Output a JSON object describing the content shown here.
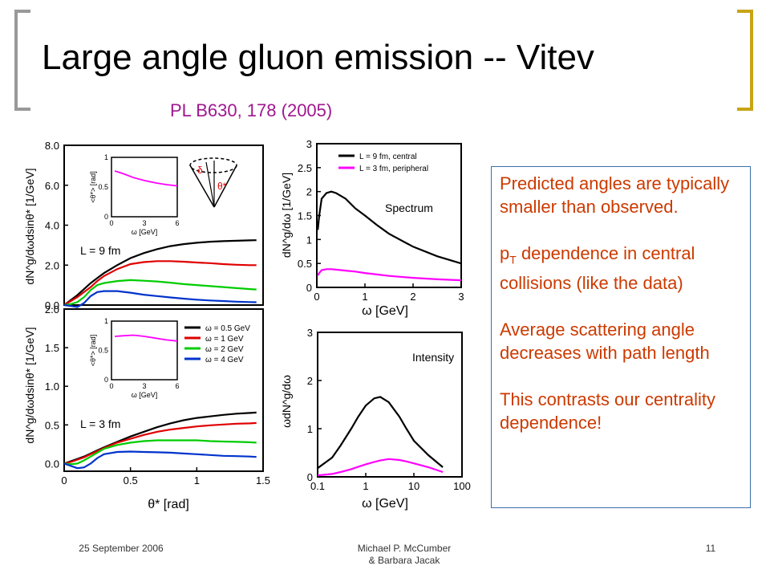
{
  "slide": {
    "title": "Large angle gluon emission -- Vitev",
    "subtitle": "PL B630, 178 (2005)",
    "notes": [
      "Predicted angles are typically smaller than observed.",
      "dependence in central collisions (like the data)",
      "Average scattering angle decreases with path length",
      "This contrasts our centrality dependence!"
    ],
    "note_pt_symbol": "p",
    "note_pt_sub": "T",
    "footer": {
      "date": "25 September 2006",
      "author_line1": "Michael P. McCumber",
      "author_line2": "& Barbara Jacak",
      "page": "11"
    },
    "colors": {
      "title": "#000000",
      "subtitle": "#a0178f",
      "notes": "#cc3a00",
      "box_border": "#3a6fa8"
    }
  },
  "chart_data": [
    {
      "type": "line",
      "id": "top-left",
      "ylabel": "dN^g/dωdsinθ* [1/GeV]",
      "xlim": [
        0,
        1.5
      ],
      "ylim": [
        0,
        8
      ],
      "xticks": [
        "0",
        "0.5",
        "1",
        "1.5"
      ],
      "yticks": [
        "0.0",
        "2.0",
        "4.0",
        "6.0",
        "8.0"
      ],
      "annotation": "L = 9 fm",
      "x": [
        0,
        0.05,
        0.1,
        0.15,
        0.2,
        0.25,
        0.3,
        0.4,
        0.5,
        0.6,
        0.7,
        0.8,
        0.9,
        1.0,
        1.1,
        1.2,
        1.3,
        1.4,
        1.45
      ],
      "series": [
        {
          "label": "ω = 0.5 GeV",
          "color": "#000000",
          "values": [
            0,
            0.25,
            0.5,
            0.8,
            1.1,
            1.35,
            1.6,
            2.0,
            2.35,
            2.6,
            2.8,
            2.95,
            3.05,
            3.12,
            3.17,
            3.2,
            3.22,
            3.24,
            3.25
          ]
        },
        {
          "label": "ω = 1 GeV",
          "color": "#e00000",
          "values": [
            0,
            0.2,
            0.4,
            0.65,
            0.9,
            1.2,
            1.45,
            1.8,
            2.05,
            2.15,
            2.2,
            2.2,
            2.17,
            2.13,
            2.1,
            2.05,
            2.02,
            2.0,
            2.0
          ]
        },
        {
          "label": "ω = 2 GeV",
          "color": "#00cc00",
          "values": [
            0,
            0.05,
            0.15,
            0.4,
            0.75,
            1.0,
            1.1,
            1.2,
            1.25,
            1.22,
            1.18,
            1.12,
            1.05,
            1.0,
            0.95,
            0.9,
            0.85,
            0.8,
            0.78
          ]
        },
        {
          "label": "ω = 4 GeV",
          "color": "#0033cc",
          "values": [
            0,
            -0.05,
            -0.1,
            0.1,
            0.45,
            0.65,
            0.7,
            0.7,
            0.62,
            0.52,
            0.45,
            0.38,
            0.32,
            0.27,
            0.23,
            0.2,
            0.17,
            0.15,
            0.14
          ]
        }
      ],
      "inset": {
        "xlim": [
          0,
          6
        ],
        "ylim": [
          0,
          1
        ],
        "xticks": [
          "0",
          "3",
          "6"
        ],
        "yticks": [
          "0",
          "0.5",
          "1"
        ],
        "xlabel": "ω [GeV]",
        "ylabel": "<θ*> [rad]",
        "x": [
          0.3,
          1,
          2,
          3,
          4,
          5,
          6
        ],
        "values": [
          0.77,
          0.73,
          0.66,
          0.61,
          0.57,
          0.54,
          0.52
        ]
      }
    },
    {
      "type": "line",
      "id": "bottom-left",
      "xlabel": "θ* [rad]",
      "ylabel": "dN^g/dωdsinθ* [1/GeV]",
      "xlim": [
        0,
        1.5
      ],
      "ylim": [
        -0.1,
        2
      ],
      "xticks": [
        "0",
        "0.5",
        "1",
        "1.5"
      ],
      "yticks": [
        "0.0",
        "0.5",
        "1.0",
        "1.5",
        "2.0"
      ],
      "annotation": "L = 3 fm",
      "legend": [
        "ω = 0.5 GeV",
        "ω = 1 GeV",
        "ω = 2 GeV",
        "ω = 4 GeV"
      ],
      "x": [
        0,
        0.05,
        0.1,
        0.15,
        0.2,
        0.25,
        0.3,
        0.4,
        0.5,
        0.6,
        0.7,
        0.8,
        0.9,
        1.0,
        1.1,
        1.2,
        1.3,
        1.4,
        1.45
      ],
      "series": [
        {
          "label": "ω = 0.5 GeV",
          "color": "#000000",
          "values": [
            0,
            0.03,
            0.06,
            0.09,
            0.13,
            0.17,
            0.21,
            0.28,
            0.35,
            0.41,
            0.47,
            0.52,
            0.56,
            0.59,
            0.61,
            0.63,
            0.645,
            0.655,
            0.66
          ]
        },
        {
          "label": "ω = 1 GeV",
          "color": "#e00000",
          "values": [
            0,
            0.02,
            0.05,
            0.08,
            0.12,
            0.16,
            0.2,
            0.27,
            0.32,
            0.37,
            0.41,
            0.44,
            0.46,
            0.48,
            0.495,
            0.505,
            0.515,
            0.52,
            0.525
          ]
        },
        {
          "label": "ω = 2 GeV",
          "color": "#00cc00",
          "values": [
            0,
            -0.01,
            0.0,
            0.04,
            0.09,
            0.14,
            0.19,
            0.24,
            0.27,
            0.29,
            0.3,
            0.3,
            0.3,
            0.3,
            0.29,
            0.285,
            0.28,
            0.275,
            0.27
          ]
        },
        {
          "label": "ω = 4 GeV",
          "color": "#0033cc",
          "values": [
            0,
            -0.03,
            -0.06,
            -0.05,
            0.0,
            0.07,
            0.12,
            0.15,
            0.155,
            0.15,
            0.145,
            0.14,
            0.13,
            0.12,
            0.11,
            0.1,
            0.095,
            0.09,
            0.085
          ]
        }
      ],
      "inset": {
        "xlim": [
          0,
          6
        ],
        "ylim": [
          0,
          1
        ],
        "xticks": [
          "0",
          "3",
          "6"
        ],
        "yticks": [
          "0",
          "0.5",
          "1"
        ],
        "xlabel": "ω [GeV]",
        "ylabel": "<θ*> [rad]",
        "x": [
          0.3,
          1,
          2,
          3,
          4,
          5,
          6
        ],
        "values": [
          0.74,
          0.75,
          0.76,
          0.74,
          0.71,
          0.68,
          0.66
        ]
      }
    },
    {
      "type": "line",
      "id": "top-right",
      "xlabel": "ω [GeV]",
      "ylabel": "dN^g/dω [1/GeV]",
      "xlim": [
        0,
        3
      ],
      "ylim": [
        0,
        3
      ],
      "xticks": [
        "0",
        "1",
        "2",
        "3"
      ],
      "yticks": [
        "0",
        "0.5",
        "1",
        "1.5",
        "2",
        "2.5",
        "3"
      ],
      "annotation": "Spectrum",
      "legend": [
        "L = 9 fm, central",
        "L = 3 fm, peripheral"
      ],
      "x": [
        0.02,
        0.05,
        0.1,
        0.2,
        0.3,
        0.4,
        0.6,
        0.8,
        1.0,
        1.25,
        1.5,
        2.0,
        2.5,
        3.0
      ],
      "series": [
        {
          "label": "L = 9 fm, central",
          "color": "#000000",
          "values": [
            1.2,
            1.5,
            1.85,
            1.97,
            2.0,
            1.97,
            1.85,
            1.65,
            1.5,
            1.3,
            1.12,
            0.85,
            0.65,
            0.5
          ]
        },
        {
          "label": "L = 3 fm, peripheral",
          "color": "#ff00ff",
          "values": [
            0.25,
            0.3,
            0.36,
            0.38,
            0.38,
            0.37,
            0.35,
            0.33,
            0.3,
            0.27,
            0.24,
            0.2,
            0.17,
            0.15
          ]
        }
      ]
    },
    {
      "type": "line",
      "id": "bottom-right",
      "xlabel": "ω [GeV]",
      "ylabel": "ωdN^g/dω",
      "xscale": "log",
      "xlim": [
        0.1,
        100
      ],
      "ylim": [
        0,
        3
      ],
      "xticks": [
        "0.1",
        "1",
        "10",
        "100"
      ],
      "yticks": [
        "0",
        "1",
        "2",
        "3"
      ],
      "annotation": "Intensity",
      "x": [
        0.1,
        0.2,
        0.3,
        0.5,
        0.7,
        1,
        1.5,
        2,
        3,
        5,
        7,
        10,
        20,
        40
      ],
      "series": [
        {
          "label": "L = 9 fm, central",
          "color": "#000000",
          "values": [
            0.18,
            0.4,
            0.65,
            1.0,
            1.25,
            1.48,
            1.63,
            1.66,
            1.55,
            1.25,
            1.0,
            0.75,
            0.45,
            0.2
          ]
        },
        {
          "label": "L = 3 fm, peripheral",
          "color": "#ff00ff",
          "values": [
            0.03,
            0.06,
            0.1,
            0.16,
            0.21,
            0.26,
            0.31,
            0.34,
            0.37,
            0.35,
            0.32,
            0.28,
            0.2,
            0.1
          ]
        }
      ]
    }
  ]
}
